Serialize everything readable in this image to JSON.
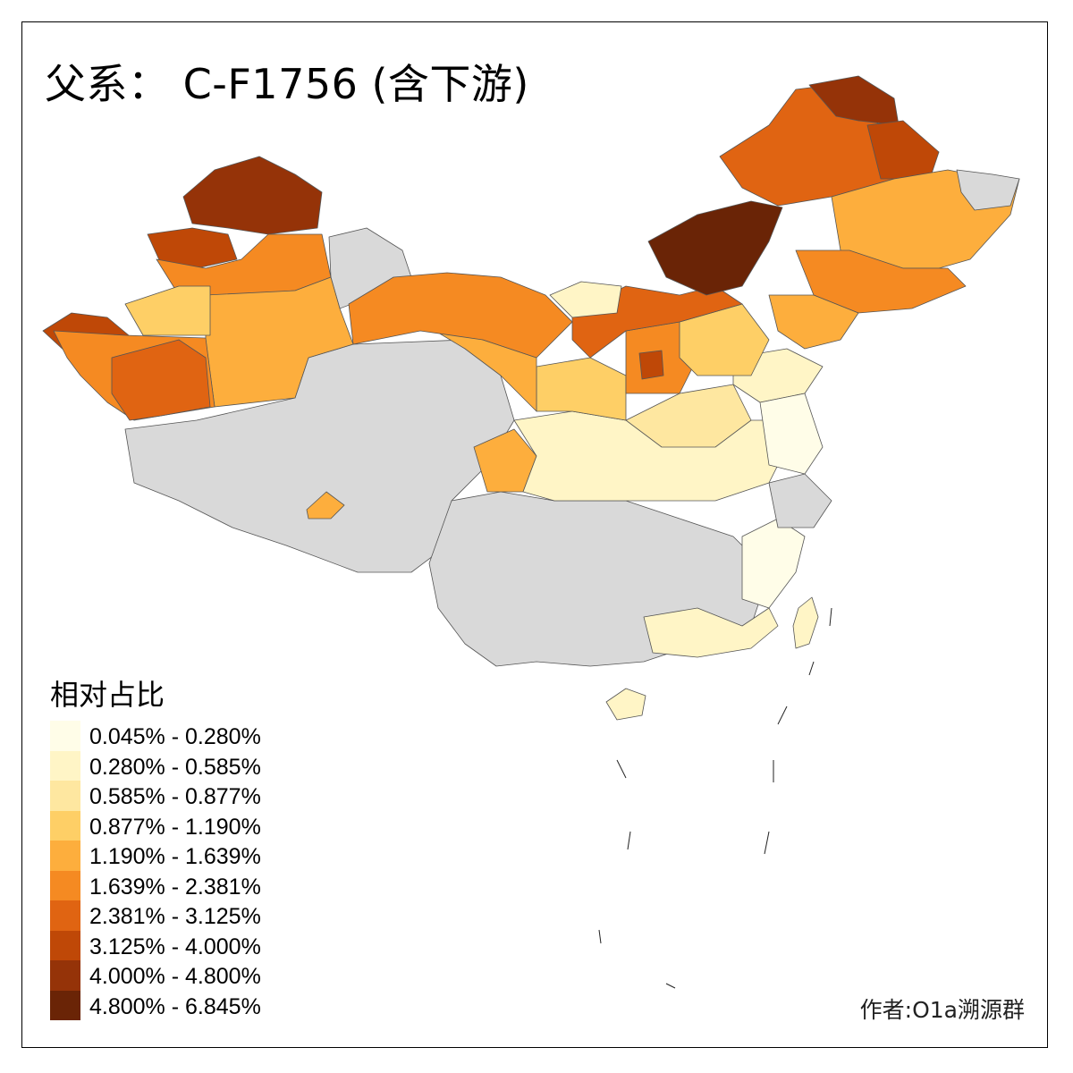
{
  "title": "父系： C-F1756 (含下游)",
  "legend": {
    "title": "相对占比",
    "items": [
      {
        "label": "0.045% - 0.280%",
        "color": "#fffde8"
      },
      {
        "label": "0.280% - 0.585%",
        "color": "#fff5c6"
      },
      {
        "label": "0.585% - 0.877%",
        "color": "#fee7a0"
      },
      {
        "label": "0.877% - 1.190%",
        "color": "#fecf66"
      },
      {
        "label": "1.190% - 1.639%",
        "color": "#fdae3d"
      },
      {
        "label": "1.639% - 2.381%",
        "color": "#f58a22"
      },
      {
        "label": "2.381% - 3.125%",
        "color": "#e06412"
      },
      {
        "label": "3.125% - 4.000%",
        "color": "#bf4807"
      },
      {
        "label": "4.000% - 4.800%",
        "color": "#953308"
      },
      {
        "label": "4.800% - 6.845%",
        "color": "#6a2406"
      }
    ]
  },
  "no_data_color": "#d9d9d9",
  "credit": "作者:O1a溯源群"
}
